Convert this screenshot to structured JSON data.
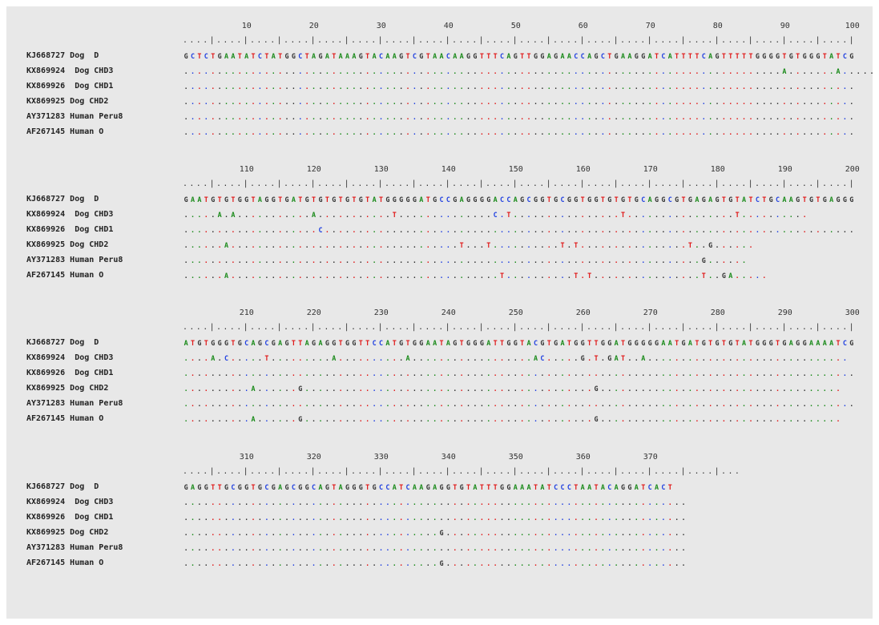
{
  "colors": {
    "A": "#1a8a1a",
    "C": "#1f3fe0",
    "G": "#333333",
    "T": "#e01818",
    "background": "#e8e8e8"
  },
  "blocks": [
    {
      "ruler_numbers": [
        "10",
        "20",
        "30",
        "40",
        "50",
        "60",
        "70",
        "80",
        "90",
        "100"
      ],
      "ruler": "....|....|....|....|....|....|....|....|....|....|....|....|....|....|....|....|....|....|....|....|",
      "rows": [
        {
          "name": "KJ668727 Dog  D",
          "seq": "GCTCTGAATATCTATGGCTAGATAAAGTACAAGTCGTAACAAGGTTTCAGTTGGAGAACCAGCTGAAGGATCATTTTCAGTTTTTGGGGTGTGGGTATCG"
        },
        {
          "name": "KX869924  Dog CHD3",
          "seq": ".........................................................................................A.......A....."
        },
        {
          "name": "KX869926  Dog CHD1",
          "seq": "...................................................................................................."
        },
        {
          "name": "KX869925 Dog CHD2",
          "seq": "...................................................................................................."
        },
        {
          "name": "AY371283 Human Peru8",
          "seq": "...................................................................................................."
        },
        {
          "name": "AF267145 Human O",
          "seq": "...................................................................................................."
        }
      ]
    },
    {
      "ruler_numbers": [
        "110",
        "120",
        "130",
        "140",
        "150",
        "160",
        "170",
        "180",
        "190",
        "200"
      ],
      "ruler": "....|....|....|....|....|....|....|....|....|....|....|....|....|....|....|....|....|....|....|....|",
      "rows": [
        {
          "name": "KJ668727 Dog  D",
          "seq": "GAATGTGTGGTAGGTGATGTGTGTGTGTATGGGGGATGCCGAGGGGACCAGCGGTGCGGTGGTGTGTGCAGGCGTGAGAGTGTATCTGCAAGTGTGAGGG"
        },
        {
          "name": "KX869924  Dog CHD3",
          "seq": ".....A.A...........A...........T..............C.T................T................T.........."
        },
        {
          "name": "KX869926  Dog CHD1",
          "seq": "....................C..............................................................................."
        },
        {
          "name": "KX869925 Dog CHD2",
          "seq": "......A..................................T...T..........T.T................T..G......"
        },
        {
          "name": "AY371283 Human Peru8",
          "seq": ".............................................................................G......"
        },
        {
          "name": "AF267145 Human O",
          "seq": "......A........................................T..........T.T................T..GA....."
        }
      ]
    },
    {
      "ruler_numbers": [
        "210",
        "220",
        "230",
        "240",
        "250",
        "260",
        "270",
        "280",
        "290",
        "300"
      ],
      "ruler": "....|....|....|....|....|....|....|....|....|....|....|....|....|....|....|....|....|....|....|....|",
      "rows": [
        {
          "name": "KJ668727 Dog  D",
          "seq": "ATGTGGGTGCAGCGAGTTAGAGGTGGTTCCATGTGGAATAGTGGGATTGGTACGTGATGGTTGGATGGGGGAATGATGTGTGTATGGGTGAGGAAAATCG"
        },
        {
          "name": "KX869924  Dog CHD3",
          "seq": "....A.C.....T.........A..........A..................AC.....G.T.GAT..A.............................."
        },
        {
          "name": "KX869926  Dog CHD1",
          "seq": "...................................................................................................."
        },
        {
          "name": "KX869925 Dog CHD2",
          "seq": "..........A......G...........................................G...................................."
        },
        {
          "name": "AY371283 Human Peru8",
          "seq": "...................................................................................................."
        },
        {
          "name": "AF267145 Human O",
          "seq": "..........A......G...........................................G...................................."
        }
      ]
    },
    {
      "ruler_numbers": [
        "310",
        "320",
        "330",
        "340",
        "350",
        "360",
        "370"
      ],
      "ruler": "....|....|....|....|....|....|....|....|....|....|....|....|....|....|....|....|...",
      "rows": [
        {
          "name": "KJ668727 Dog  D",
          "seq": "GAGGTTGCGGTGCGAGCGGCAGTAGGGTGCCATCAAGAGGTGTATTTGGAAATATCCCTAATACAGGATCACT"
        },
        {
          "name": "KX869924  Dog CHD3",
          "seq": "..........................................................................."
        },
        {
          "name": "KX869926  Dog CHD1",
          "seq": "..........................................................................."
        },
        {
          "name": "KX869925 Dog CHD2",
          "seq": "......................................G...................................."
        },
        {
          "name": "AY371283 Human Peru8",
          "seq": "..........................................................................."
        },
        {
          "name": "AF267145 Human O",
          "seq": "......................................G...................................."
        }
      ]
    }
  ]
}
